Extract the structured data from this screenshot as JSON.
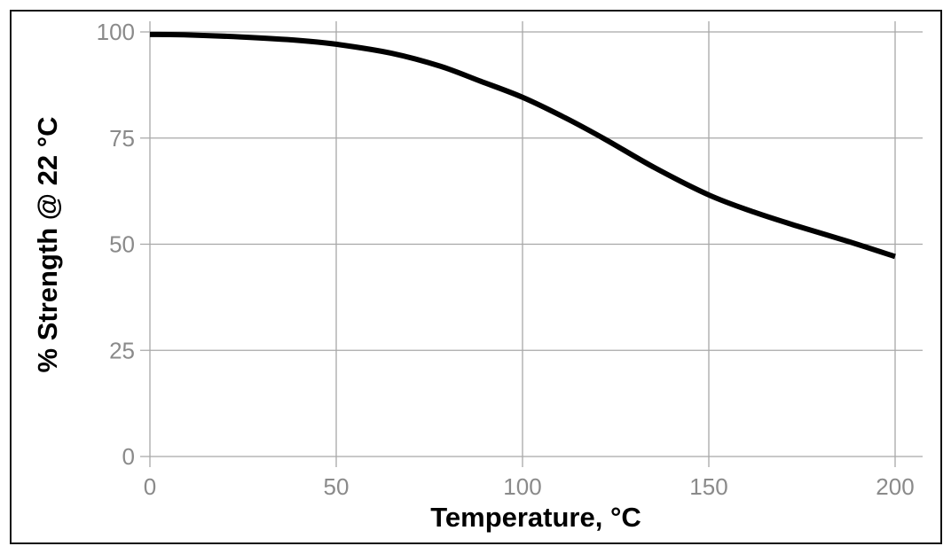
{
  "chart_data": {
    "type": "line",
    "title": "",
    "xlabel": "Temperature, °C",
    "ylabel": "% Strength @ 22 °C",
    "xlim": [
      0,
      200
    ],
    "ylim": [
      0,
      100
    ],
    "xticks": [
      "0",
      "50",
      "100",
      "150",
      "200"
    ],
    "yticks": [
      "0",
      "25",
      "50",
      "75",
      "100"
    ],
    "grid": true,
    "series": [
      {
        "name": "Strength",
        "color": "#000000",
        "x": [
          0,
          10,
          24.6,
          40,
          50,
          64.7,
          78,
          88.7,
          100,
          111.4,
          122,
          135.5,
          150,
          162,
          174,
          187.6,
          200
        ],
        "y": [
          99.4,
          99.3,
          98.8,
          98.0,
          97.1,
          95.0,
          91.9,
          88.4,
          84.6,
          79.8,
          74.8,
          68.0,
          61.6,
          57.6,
          54.2,
          50.6,
          47.1
        ]
      }
    ]
  }
}
